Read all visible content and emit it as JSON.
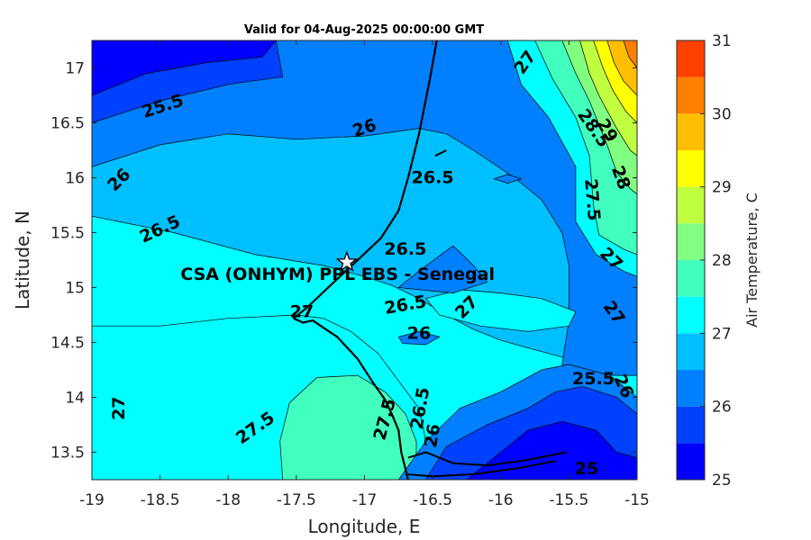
{
  "chart_data": {
    "type": "contour",
    "title": "Valid for 04-Aug-2025 00:00:00 GMT",
    "xlabel": "Longitude, E",
    "ylabel": "Latitude, N",
    "xlim": [
      -19,
      -15
    ],
    "ylim": [
      13.25,
      17.25
    ],
    "xticks": [
      "-19",
      "-18.5",
      "-18",
      "-17.5",
      "-17",
      "-16.5",
      "-16",
      "-15.5",
      "-15"
    ],
    "yticks": [
      "13.5",
      "14",
      "14.5",
      "15",
      "15.5",
      "16",
      "16.5",
      "17"
    ],
    "colorbar": {
      "label": "Air Temperature, C",
      "levels": [
        25,
        25.5,
        26,
        26.5,
        27,
        27.5,
        28,
        28.5,
        29,
        29.5,
        30,
        30.5,
        31
      ],
      "tick_labels": [
        "25",
        "26",
        "27",
        "28",
        "29",
        "30",
        "31"
      ],
      "colors": [
        "#0000ff",
        "#0040ff",
        "#0080ff",
        "#00bfff",
        "#00ffff",
        "#40ffbf",
        "#80ff80",
        "#bfff40",
        "#ffff00",
        "#ffbf00",
        "#ff8000",
        "#ff4000"
      ]
    },
    "station": {
      "name": "CSA (ONHYM) PPL EBS  - Senegal",
      "lon": -17.13,
      "lat": 15.23
    },
    "contour_labels": [
      {
        "text": "25.5",
        "lon": -18.48,
        "lat": 16.65,
        "rot": -18
      },
      {
        "text": "26",
        "lon": -17.0,
        "lat": 16.45,
        "rot": -18
      },
      {
        "text": "26",
        "lon": -18.8,
        "lat": 15.98,
        "rot": -45
      },
      {
        "text": "26.5",
        "lon": -16.5,
        "lat": 16.0,
        "rot": 0
      },
      {
        "text": "26.5",
        "lon": -18.5,
        "lat": 15.53,
        "rot": -25
      },
      {
        "text": "26.5",
        "lon": -16.7,
        "lat": 15.35,
        "rot": 0
      },
      {
        "text": "26.5",
        "lon": -16.7,
        "lat": 14.84,
        "rot": -10
      },
      {
        "text": "26",
        "lon": -16.6,
        "lat": 14.58,
        "rot": 0
      },
      {
        "text": "27",
        "lon": -16.25,
        "lat": 14.82,
        "rot": -45
      },
      {
        "text": "27",
        "lon": -15.82,
        "lat": 17.05,
        "rot": -55
      },
      {
        "text": "27",
        "lon": -17.46,
        "lat": 14.78,
        "rot": 0
      },
      {
        "text": "27",
        "lon": -18.8,
        "lat": 13.9,
        "rot": -90
      },
      {
        "text": "27",
        "lon": -15.19,
        "lat": 15.26,
        "rot": 45
      },
      {
        "text": "27",
        "lon": -15.17,
        "lat": 14.77,
        "rot": 55
      },
      {
        "text": "27.5",
        "lon": -17.8,
        "lat": 13.72,
        "rot": -35
      },
      {
        "text": "27.5",
        "lon": -16.85,
        "lat": 13.8,
        "rot": -75
      },
      {
        "text": "27.5",
        "lon": -15.33,
        "lat": 15.8,
        "rot": 85
      },
      {
        "text": "28.5",
        "lon": -15.32,
        "lat": 16.45,
        "rot": 55
      },
      {
        "text": "29",
        "lon": -15.22,
        "lat": 16.43,
        "rot": 60
      },
      {
        "text": "28",
        "lon": -15.12,
        "lat": 16.0,
        "rot": 70
      },
      {
        "text": "25.5",
        "lon": -15.32,
        "lat": 14.17,
        "rot": 0
      },
      {
        "text": "26",
        "lon": -15.1,
        "lat": 14.1,
        "rot": 65
      },
      {
        "text": "26.5",
        "lon": -16.59,
        "lat": 13.9,
        "rot": -80
      },
      {
        "text": "26",
        "lon": -16.5,
        "lat": 13.65,
        "rot": -80
      },
      {
        "text": "25",
        "lon": -15.37,
        "lat": 13.35,
        "rot": 0
      }
    ],
    "regions": [
      {
        "level": 26.5,
        "points": [
          [
            -19,
            15.65
          ],
          [
            -18.4,
            15.5
          ],
          [
            -17.8,
            15.3
          ],
          [
            -17.3,
            15.2
          ],
          [
            -17.0,
            15.1
          ],
          [
            -16.8,
            15.02
          ],
          [
            -16.6,
            14.9
          ],
          [
            -16.4,
            14.75
          ],
          [
            -16.2,
            14.62
          ],
          [
            -16.0,
            14.52
          ],
          [
            -15.8,
            14.45
          ],
          [
            -15.5,
            14.35
          ],
          [
            -15.2,
            14.25
          ],
          [
            -15,
            14.2
          ],
          [
            -15,
            17.25
          ],
          [
            -19,
            17.25
          ]
        ]
      },
      {
        "level": 26,
        "points": [
          [
            -19,
            16.1
          ],
          [
            -18.5,
            16.3
          ],
          [
            -18.0,
            16.4
          ],
          [
            -17.5,
            16.35
          ],
          [
            -17.0,
            16.38
          ],
          [
            -16.6,
            16.45
          ],
          [
            -16.4,
            16.4
          ],
          [
            -16.2,
            16.25
          ],
          [
            -15.9,
            16.0
          ],
          [
            -15.7,
            15.8
          ],
          [
            -15.55,
            15.5
          ],
          [
            -15.5,
            15.2
          ],
          [
            -15.5,
            14.7
          ],
          [
            -15.55,
            14.3
          ],
          [
            -15.3,
            14.2
          ],
          [
            -15,
            14.2
          ],
          [
            -15,
            17.25
          ],
          [
            -19,
            17.25
          ]
        ]
      },
      {
        "level": 25.5,
        "points": [
          [
            -19,
            16.5
          ],
          [
            -18.5,
            16.7
          ],
          [
            -18.0,
            16.85
          ],
          [
            -17.6,
            16.92
          ],
          [
            -17.65,
            17.25
          ],
          [
            -19,
            17.25
          ]
        ]
      },
      {
        "level": 25,
        "points": [
          [
            -19,
            16.75
          ],
          [
            -18.6,
            16.95
          ],
          [
            -18.15,
            17.05
          ],
          [
            -17.75,
            17.1
          ],
          [
            -17.65,
            17.25
          ],
          [
            -19,
            17.25
          ]
        ]
      },
      {
        "level": 27,
        "points": [
          [
            -19,
            14.65
          ],
          [
            -18.5,
            14.65
          ],
          [
            -18.0,
            14.72
          ],
          [
            -17.5,
            14.75
          ],
          [
            -17.3,
            14.72
          ],
          [
            -17.1,
            14.6
          ],
          [
            -16.9,
            14.4
          ],
          [
            -16.75,
            14.15
          ],
          [
            -16.6,
            13.9
          ],
          [
            -16.55,
            13.6
          ],
          [
            -16.55,
            13.25
          ],
          [
            -19,
            13.25
          ]
        ]
      },
      {
        "level": 27.5,
        "points": [
          [
            -17.6,
            13.25
          ],
          [
            -17.62,
            13.6
          ],
          [
            -17.55,
            13.95
          ],
          [
            -17.35,
            14.18
          ],
          [
            -17.05,
            14.2
          ],
          [
            -16.85,
            14.05
          ],
          [
            -16.7,
            13.85
          ],
          [
            -16.62,
            13.6
          ],
          [
            -16.62,
            13.25
          ]
        ]
      },
      {
        "level": 27,
        "points": [
          [
            -16.55,
            14.9
          ],
          [
            -16.3,
            14.98
          ],
          [
            -16.0,
            14.95
          ],
          [
            -15.7,
            14.9
          ],
          [
            -15.45,
            14.78
          ],
          [
            -15.5,
            14.65
          ],
          [
            -15.8,
            14.6
          ],
          [
            -16.15,
            14.65
          ],
          [
            -16.45,
            14.75
          ]
        ]
      },
      {
        "level": 26,
        "points": [
          [
            -16.75,
            15.0
          ],
          [
            -16.6,
            15.15
          ],
          [
            -16.35,
            15.38
          ],
          [
            -16.2,
            15.2
          ],
          [
            -16.1,
            15.05
          ],
          [
            -16.35,
            14.95
          ]
        ]
      },
      {
        "level": 26,
        "points": [
          [
            -16.75,
            14.55
          ],
          [
            -16.6,
            14.6
          ],
          [
            -16.45,
            14.55
          ],
          [
            -16.55,
            14.48
          ],
          [
            -16.72,
            14.49
          ]
        ]
      },
      {
        "level": 26,
        "points": [
          [
            -16.05,
            15.99
          ],
          [
            -15.95,
            16.03
          ],
          [
            -15.85,
            15.99
          ],
          [
            -15.95,
            15.95
          ]
        ]
      },
      {
        "level": 26,
        "points": [
          [
            -16.75,
            13.25
          ],
          [
            -16.55,
            13.6
          ],
          [
            -16.3,
            13.9
          ],
          [
            -16.0,
            14.05
          ],
          [
            -15.7,
            14.25
          ],
          [
            -15.5,
            14.3
          ],
          [
            -15.2,
            14.2
          ],
          [
            -15.0,
            14.0
          ],
          [
            -15,
            13.25
          ]
        ]
      },
      {
        "level": 25.5,
        "points": [
          [
            -16.55,
            13.25
          ],
          [
            -16.4,
            13.55
          ],
          [
            -16.1,
            13.75
          ],
          [
            -15.8,
            13.9
          ],
          [
            -15.6,
            14.05
          ],
          [
            -15.4,
            14.1
          ],
          [
            -15.15,
            14.0
          ],
          [
            -15.0,
            13.85
          ],
          [
            -15,
            13.25
          ]
        ]
      },
      {
        "level": 25,
        "points": [
          [
            -16.25,
            13.25
          ],
          [
            -16.0,
            13.5
          ],
          [
            -15.8,
            13.7
          ],
          [
            -15.55,
            13.78
          ],
          [
            -15.3,
            13.7
          ],
          [
            -15.15,
            13.5
          ],
          [
            -15.0,
            13.45
          ],
          [
            -15,
            13.25
          ]
        ]
      },
      {
        "level": 27,
        "points": [
          [
            -15.95,
            17.25
          ],
          [
            -15.85,
            16.85
          ],
          [
            -15.65,
            16.55
          ],
          [
            -15.45,
            16.1
          ],
          [
            -15.45,
            15.6
          ],
          [
            -15.3,
            15.3
          ],
          [
            -15.1,
            15.15
          ],
          [
            -15,
            15.1
          ],
          [
            -15,
            17.25
          ]
        ]
      },
      {
        "level": 27.5,
        "points": [
          [
            -15.75,
            17.25
          ],
          [
            -15.62,
            16.9
          ],
          [
            -15.45,
            16.55
          ],
          [
            -15.35,
            16.2
          ],
          [
            -15.32,
            15.75
          ],
          [
            -15.28,
            15.48
          ],
          [
            -15.1,
            15.35
          ],
          [
            -15,
            15.3
          ],
          [
            -15,
            17.25
          ]
        ]
      },
      {
        "level": 28,
        "points": [
          [
            -15.55,
            17.25
          ],
          [
            -15.45,
            16.95
          ],
          [
            -15.35,
            16.7
          ],
          [
            -15.22,
            16.3
          ],
          [
            -15.15,
            16.05
          ],
          [
            -15.05,
            15.9
          ],
          [
            -15,
            15.85
          ],
          [
            -15,
            17.25
          ]
        ]
      },
      {
        "level": 28.5,
        "points": [
          [
            -15.42,
            17.25
          ],
          [
            -15.35,
            16.95
          ],
          [
            -15.28,
            16.75
          ],
          [
            -15.15,
            16.45
          ],
          [
            -15.05,
            16.25
          ],
          [
            -15,
            16.2
          ],
          [
            -15,
            17.25
          ]
        ]
      },
      {
        "level": 29,
        "points": [
          [
            -15.32,
            17.25
          ],
          [
            -15.25,
            17.0
          ],
          [
            -15.18,
            16.8
          ],
          [
            -15.08,
            16.6
          ],
          [
            -15,
            16.5
          ],
          [
            -15,
            17.25
          ]
        ]
      },
      {
        "level": 29.5,
        "points": [
          [
            -15.22,
            17.25
          ],
          [
            -15.17,
            17.05
          ],
          [
            -15.1,
            16.88
          ],
          [
            -15.0,
            16.75
          ],
          [
            -15,
            17.25
          ]
        ]
      },
      {
        "level": 30,
        "points": [
          [
            -15.1,
            17.25
          ],
          [
            -15.06,
            17.1
          ],
          [
            -15.0,
            17.0
          ],
          [
            -15,
            17.25
          ]
        ]
      }
    ],
    "coast": [
      [
        [
          -16.47,
          17.25
        ],
        [
          -16.52,
          16.9
        ],
        [
          -16.6,
          16.4
        ],
        [
          -16.68,
          16.0
        ],
        [
          -16.75,
          15.7
        ],
        [
          -16.88,
          15.45
        ],
        [
          -17.05,
          15.25
        ],
        [
          -17.25,
          15.02
        ],
        [
          -17.42,
          14.82
        ],
        [
          -17.52,
          14.72
        ],
        [
          -17.45,
          14.68
        ],
        [
          -17.38,
          14.7
        ],
        [
          -17.2,
          14.55
        ],
        [
          -17.05,
          14.35
        ],
        [
          -16.93,
          14.12
        ],
        [
          -16.85,
          13.98
        ],
        [
          -16.8,
          13.85
        ],
        [
          -16.75,
          13.7
        ],
        [
          -16.73,
          13.5
        ],
        [
          -16.7,
          13.35
        ],
        [
          -16.68,
          13.25
        ]
      ],
      [
        [
          -16.68,
          13.45
        ],
        [
          -16.55,
          13.5
        ],
        [
          -16.35,
          13.4
        ],
        [
          -16.1,
          13.38
        ],
        [
          -15.85,
          13.42
        ],
        [
          -15.6,
          13.48
        ],
        [
          -15.52,
          13.5
        ]
      ],
      [
        [
          -16.7,
          13.3
        ],
        [
          -16.5,
          13.28
        ],
        [
          -16.2,
          13.3
        ],
        [
          -15.9,
          13.35
        ],
        [
          -15.6,
          13.42
        ]
      ],
      [
        [
          -16.48,
          16.2
        ],
        [
          -16.4,
          16.25
        ]
      ]
    ]
  }
}
